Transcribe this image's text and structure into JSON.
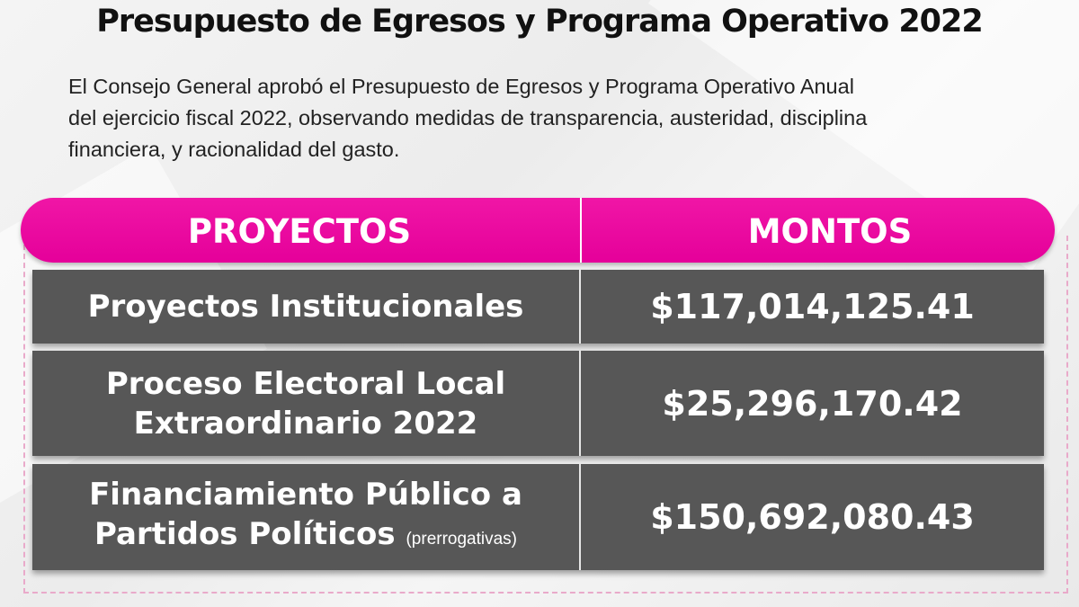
{
  "title": "Presupuesto de Egresos y Programa Operativo 2022",
  "intro": {
    "line1": "El Consejo General aprobó el Presupuesto de Egresos y Programa Operativo Anual",
    "line2": "del ejercicio fiscal 2022, observando medidas de transparencia, austeridad, disciplina",
    "line3": "financiera, y racionalidad del gasto."
  },
  "table": {
    "headers": [
      "PROYECTOS",
      "MONTOS"
    ],
    "rows": [
      {
        "name_lines": [
          "Proyectos Institucionales"
        ],
        "note": "",
        "amount": "$117,014,125.41"
      },
      {
        "name_lines": [
          "Proceso Electoral Local",
          "Extraordinario 2022"
        ],
        "note": "",
        "amount": "$25,296,170.42"
      },
      {
        "name_lines": [
          "Financiamiento Público a",
          "Partidos Políticos"
        ],
        "note": "(prerrogativas)",
        "amount": "$150,692,080.43"
      }
    ]
  },
  "colors": {
    "header_pink": "#e5009a",
    "row_gray": "#575757",
    "frame_dash_pink": "#e9aaca"
  }
}
